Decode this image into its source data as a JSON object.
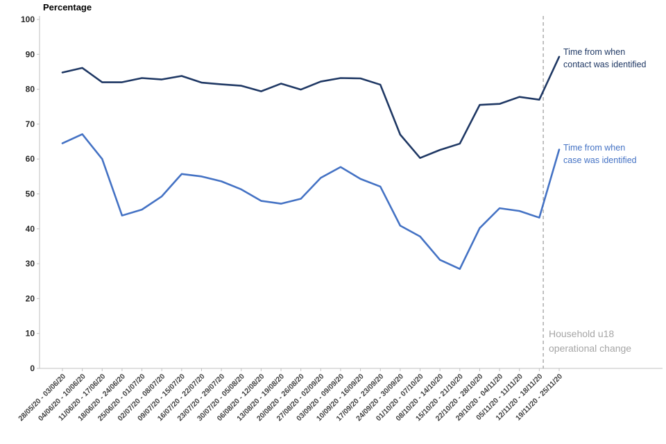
{
  "chart_data": {
    "type": "line",
    "title": "Percentage",
    "grid": false,
    "ylim": [
      0,
      100
    ],
    "ytick_step": 10,
    "axis_color": "#bfbfbf",
    "ytick_label_color": "#262626",
    "xtick_label_color": "#404040",
    "categories": [
      "28/05/20 - 03/06/20",
      "04/06/20 - 10/06/20",
      "11/06/20 - 17/06/20",
      "18/06/20 - 24/06/20",
      "25/06/20 - 01/07/20",
      "02/07/20 - 08/07/20",
      "09/07/20 - 15/07/20",
      "16/07/20 - 22/07/20",
      "23/07/20 - 29/07/20",
      "30/07/20 - 05/08/20",
      "06/08/20 - 12/08/20",
      "13/08/20 - 19/08/20",
      "20/08/20 - 26/08/20",
      "27/08/20 - 02/09/20",
      "03/09/20 - 09/09/20",
      "10/09/20 - 16/09/20",
      "17/09/20 - 23/09/20",
      "24/09/20 - 30/09/20",
      "01/10/20 - 07/10/20",
      "08/10/20 - 14/10/20",
      "15/10/20 - 21/10/20",
      "22/10/20 - 28/10/20",
      "29/10/20 - 04/11/20",
      "05/11/20 - 11/11/20",
      "12/11/20 - 18/11/20",
      "19/11/20 - 25/11/20"
    ],
    "series": [
      {
        "name": "Time from when contact was identified",
        "label_lines": [
          "Time from when",
          "contact was identified"
        ],
        "color": "#1f3864",
        "values": [
          84.8,
          86.1,
          82.0,
          82.0,
          83.2,
          82.8,
          83.8,
          81.9,
          81.4,
          81.0,
          79.4,
          81.6,
          79.9,
          82.2,
          83.2,
          83.1,
          81.3,
          67.0,
          60.3,
          62.6,
          64.4,
          75.5,
          75.8,
          77.8,
          77.0,
          89.3
        ]
      },
      {
        "name": "Time from when case was identified",
        "label_lines": [
          "Time from when",
          "case was identified"
        ],
        "color": "#4472c4",
        "values": [
          64.5,
          67.1,
          60.0,
          43.8,
          45.5,
          49.3,
          55.7,
          55.0,
          53.6,
          51.3,
          48.0,
          47.2,
          48.6,
          54.6,
          57.7,
          54.3,
          52.1,
          40.9,
          37.8,
          31.1,
          28.5,
          40.2,
          45.9,
          45.1,
          43.2,
          62.7
        ]
      }
    ],
    "reference_line": {
      "style": "dashed",
      "color": "#999999",
      "position_category_index": 24.2
    },
    "annotation": {
      "label_lines": [
        "Household u18",
        "operational change"
      ],
      "color": "#a6a6a6"
    },
    "legend_position": "inline-right-of-lines"
  }
}
